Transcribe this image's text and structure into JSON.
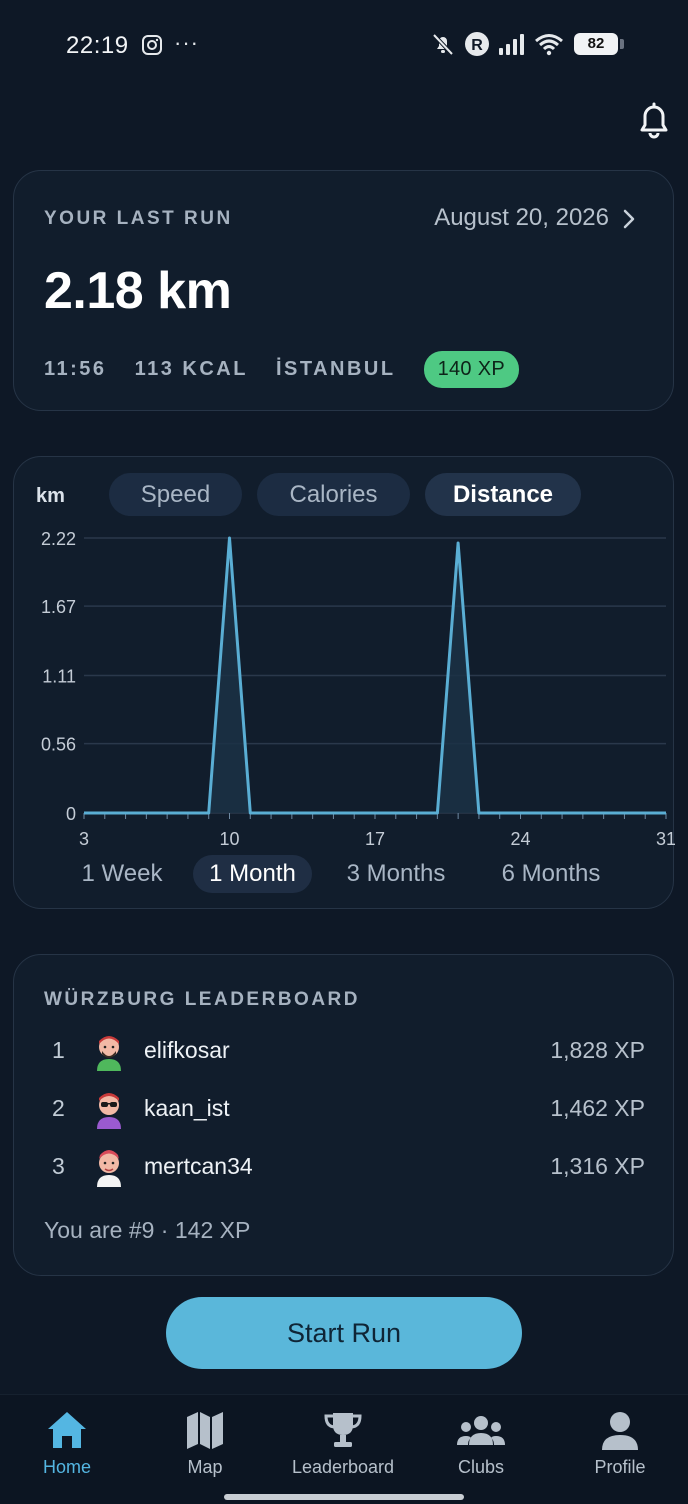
{
  "status_bar": {
    "time": "22:19",
    "dots": "···",
    "battery": "82"
  },
  "last_run": {
    "label": "YOUR LAST RUN",
    "date": "August 20, 2026",
    "distance": "2.18 km",
    "time": "11:56",
    "calories": "113 KCAL",
    "city": "İSTANBUL",
    "xp": "140 XP"
  },
  "chart_panel": {
    "unit": "km",
    "metrics": [
      "Speed",
      "Calories",
      "Distance"
    ],
    "selected_metric": "Distance",
    "ranges": [
      "1 Week",
      "1 Month",
      "3 Months",
      "6 Months"
    ],
    "selected_range": "1 Month"
  },
  "chart_data": {
    "type": "area",
    "xlabel": "",
    "ylabel": "km",
    "x_ticks": [
      3,
      10,
      17,
      24,
      31
    ],
    "y_ticks": [
      "2.22",
      "1.67",
      "1.11",
      "0.56",
      "0"
    ],
    "xlim": [
      3,
      31
    ],
    "ylim": [
      0,
      2.22
    ],
    "grid": true,
    "x": [
      3,
      9,
      10,
      11,
      20,
      21,
      22,
      31
    ],
    "series": [
      {
        "values": [
          0,
          0,
          2.22,
          0,
          0,
          2.18,
          0,
          0
        ]
      }
    ]
  },
  "leaderboard": {
    "title": "WÜRZBURG LEADERBOARD",
    "entries": [
      {
        "rank": "1",
        "name": "elifkosar",
        "xp": "1,828 XP"
      },
      {
        "rank": "2",
        "name": "kaan_ist",
        "xp": "1,462 XP"
      },
      {
        "rank": "3",
        "name": "mertcan34",
        "xp": "1,316 XP"
      }
    ],
    "you": "You are #9 · 142 XP"
  },
  "start_button": "Start Run",
  "nav": [
    {
      "label": "Home",
      "icon": "home-icon"
    },
    {
      "label": "Map",
      "icon": "map-icon"
    },
    {
      "label": "Leaderboard",
      "icon": "trophy-icon"
    },
    {
      "label": "Clubs",
      "icon": "group-icon"
    },
    {
      "label": "Profile",
      "icon": "person-icon"
    }
  ],
  "colors": {
    "accent": "#54b6e2",
    "xp_badge": "#4ec983",
    "background": "#0e1826",
    "line": "#5aaed4"
  }
}
